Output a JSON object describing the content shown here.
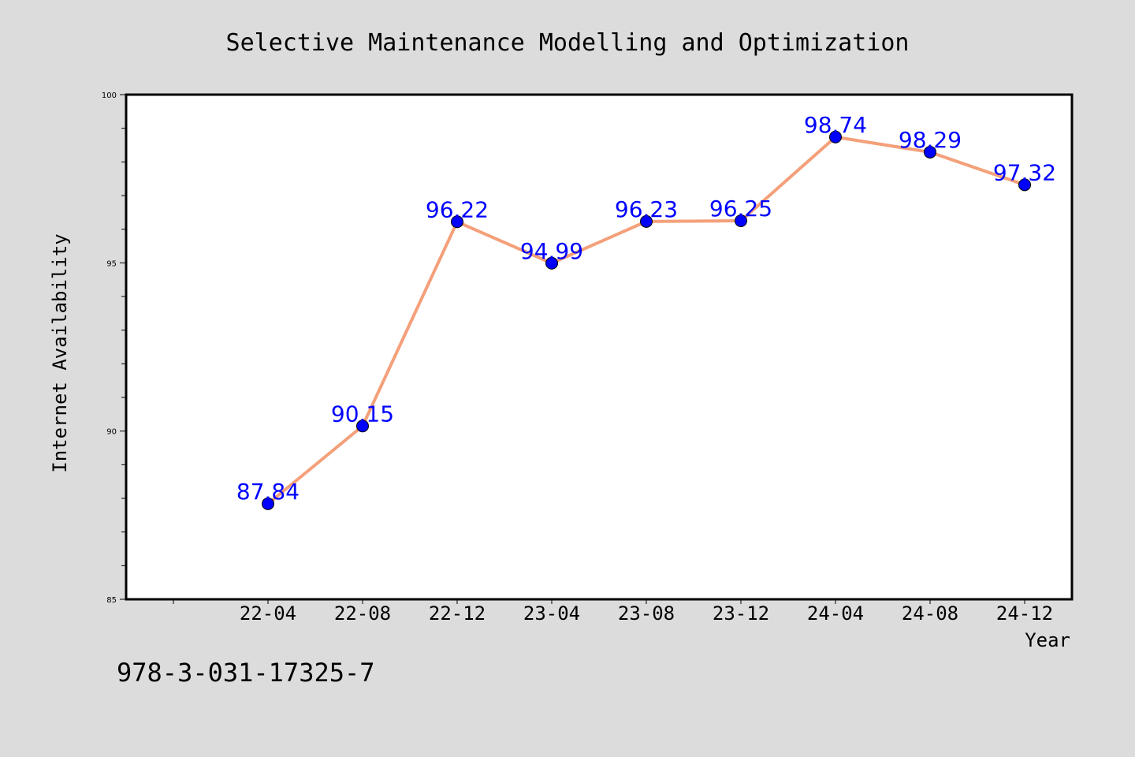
{
  "chart_data": {
    "type": "line",
    "title": "Selective Maintenance Modelling and Optimization",
    "xlabel": "Year",
    "ylabel": "Internet Availability",
    "categories": [
      "22-04",
      "22-08",
      "22-12",
      "23-04",
      "23-08",
      "23-12",
      "24-04",
      "24-08",
      "24-12"
    ],
    "series": [
      {
        "values": [
          87.84,
          90.15,
          96.22,
          94.99,
          96.23,
          96.25,
          98.74,
          98.29,
          97.32
        ],
        "labels": [
          "87.84",
          "90.15",
          "96.22",
          "94.99",
          "96.23",
          "96.25",
          "98.74",
          "98.29",
          "97.32"
        ],
        "line_color": "#f4a07a",
        "marker_color": "#0000ff"
      }
    ],
    "ylim": [
      85,
      100
    ],
    "yticks": [
      "85",
      "90",
      "95",
      "100"
    ],
    "grid": false,
    "legend": "none"
  },
  "footer": {
    "isbn": "978-3-031-17325-7"
  }
}
